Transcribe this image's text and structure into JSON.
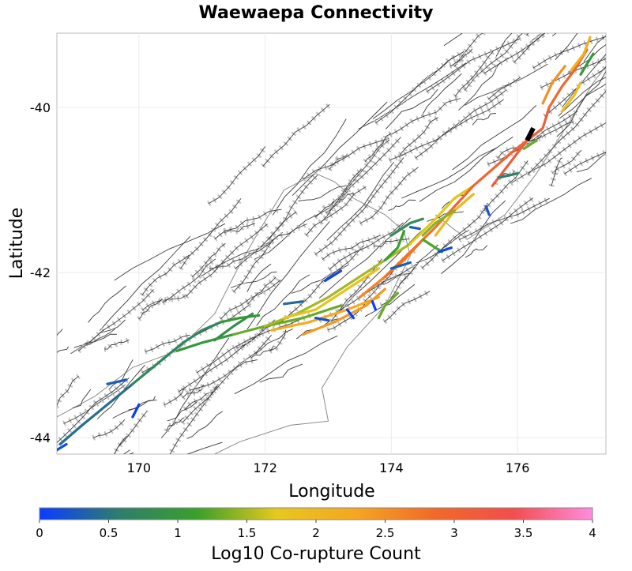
{
  "title": "Waewaepa Connectivity",
  "map": {
    "x_axis": {
      "label": "Longitude",
      "range": [
        168.7,
        177.4
      ],
      "ticks": [
        {
          "value": 170,
          "label": "170"
        },
        {
          "value": 172,
          "label": "172"
        },
        {
          "value": 174,
          "label": "174"
        },
        {
          "value": 176,
          "label": "176"
        }
      ]
    },
    "y_axis": {
      "label": "Latitude",
      "range": [
        -44.2,
        -39.1
      ],
      "ticks": [
        {
          "value": -40,
          "label": "-40"
        },
        {
          "value": -42,
          "label": "-42"
        },
        {
          "value": -44,
          "label": "-44"
        }
      ]
    },
    "colors": {
      "background_fault": "#3a3a3a",
      "fault_outline": "#bdbdbd",
      "coast": "#8a8a8a",
      "highlight": "#000000"
    },
    "highlighted_section": {
      "name": "Waewaepa",
      "points": [
        [
          176.25,
          -40.25
        ],
        [
          176.15,
          -40.4
        ]
      ]
    },
    "corupture_sections": [
      {
        "log10": 0.45,
        "points": [
          [
            168.75,
            -44.08
          ],
          [
            169.1,
            -43.85
          ],
          [
            169.5,
            -43.6
          ],
          [
            169.9,
            -43.35
          ]
        ]
      },
      {
        "log10": 0.7,
        "points": [
          [
            169.9,
            -43.35
          ],
          [
            170.3,
            -43.1
          ],
          [
            170.7,
            -42.85
          ],
          [
            171.0,
            -42.7
          ],
          [
            171.3,
            -42.6
          ]
        ]
      },
      {
        "log10": 1.05,
        "points": [
          [
            171.3,
            -42.6
          ],
          [
            171.6,
            -42.55
          ],
          [
            171.9,
            -42.52
          ]
        ]
      },
      {
        "log10": 0.15,
        "points": [
          [
            168.7,
            -44.15
          ],
          [
            168.85,
            -44.08
          ]
        ]
      },
      {
        "log10": 0.3,
        "points": [
          [
            169.5,
            -43.35
          ],
          [
            169.8,
            -43.3
          ]
        ]
      },
      {
        "log10": 0.0,
        "points": [
          [
            169.9,
            -43.75
          ],
          [
            170.0,
            -43.6
          ]
        ]
      },
      {
        "log10": 1.0,
        "points": [
          [
            170.6,
            -42.95
          ],
          [
            171.0,
            -42.85
          ],
          [
            171.5,
            -42.75
          ]
        ]
      },
      {
        "log10": 0.9,
        "points": [
          [
            171.2,
            -42.82
          ],
          [
            171.5,
            -42.65
          ],
          [
            171.8,
            -42.5
          ]
        ]
      },
      {
        "log10": 1.3,
        "points": [
          [
            171.5,
            -42.75
          ],
          [
            172.0,
            -42.65
          ],
          [
            172.6,
            -42.55
          ],
          [
            173.2,
            -42.4
          ]
        ]
      },
      {
        "log10": 1.5,
        "points": [
          [
            172.0,
            -42.65
          ],
          [
            172.5,
            -42.5
          ],
          [
            173.0,
            -42.3
          ],
          [
            173.5,
            -42.05
          ],
          [
            174.0,
            -41.8
          ],
          [
            174.3,
            -41.65
          ]
        ]
      },
      {
        "log10": 1.8,
        "points": [
          [
            172.3,
            -42.55
          ],
          [
            172.8,
            -42.45
          ],
          [
            173.3,
            -42.2
          ],
          [
            173.8,
            -41.95
          ]
        ]
      },
      {
        "log10": 2.2,
        "points": [
          [
            172.1,
            -42.7
          ],
          [
            172.7,
            -42.6
          ],
          [
            173.3,
            -42.45
          ],
          [
            173.8,
            -42.3
          ]
        ]
      },
      {
        "log10": 2.4,
        "points": [
          [
            172.6,
            -42.75
          ],
          [
            173.1,
            -42.6
          ],
          [
            173.6,
            -42.4
          ],
          [
            173.9,
            -42.2
          ]
        ]
      },
      {
        "log10": 2.6,
        "points": [
          [
            173.5,
            -42.3
          ],
          [
            173.9,
            -42.05
          ],
          [
            174.2,
            -41.85
          ],
          [
            174.5,
            -41.6
          ]
        ]
      },
      {
        "log10": 2.8,
        "points": [
          [
            173.9,
            -42.05
          ],
          [
            174.3,
            -41.75
          ],
          [
            174.7,
            -41.45
          ],
          [
            175.0,
            -41.2
          ]
        ]
      },
      {
        "log10": 1.7,
        "points": [
          [
            174.3,
            -41.65
          ],
          [
            174.7,
            -41.35
          ],
          [
            175.0,
            -41.1
          ],
          [
            175.3,
            -40.95
          ]
        ]
      },
      {
        "log10": 2.0,
        "points": [
          [
            174.7,
            -41.55
          ],
          [
            175.0,
            -41.25
          ],
          [
            175.3,
            -41.05
          ]
        ]
      },
      {
        "log10": 1.2,
        "points": [
          [
            174.5,
            -41.6
          ],
          [
            174.8,
            -41.75
          ]
        ]
      },
      {
        "log10": 0.8,
        "points": [
          [
            174.0,
            -41.55
          ],
          [
            174.3,
            -41.4
          ],
          [
            174.5,
            -41.35
          ]
        ]
      },
      {
        "log10": 0.1,
        "points": [
          [
            174.75,
            -41.75
          ],
          [
            174.95,
            -41.7
          ]
        ]
      },
      {
        "log10": 0.3,
        "points": [
          [
            174.0,
            -41.95
          ],
          [
            174.3,
            -41.88
          ]
        ]
      },
      {
        "log10": 1.1,
        "points": [
          [
            174.2,
            -41.5
          ],
          [
            174.1,
            -41.7
          ],
          [
            173.9,
            -41.85
          ]
        ]
      },
      {
        "log10": 3.0,
        "points": [
          [
            175.0,
            -41.2
          ],
          [
            175.3,
            -40.95
          ],
          [
            175.6,
            -40.75
          ],
          [
            175.9,
            -40.55
          ],
          [
            176.15,
            -40.4
          ]
        ]
      },
      {
        "log10": 3.1,
        "points": [
          [
            175.6,
            -40.95
          ],
          [
            175.9,
            -40.65
          ],
          [
            176.15,
            -40.4
          ],
          [
            176.4,
            -40.25
          ],
          [
            176.5,
            -40.0
          ]
        ]
      },
      {
        "log10": 2.9,
        "points": [
          [
            176.5,
            -40.0
          ],
          [
            176.7,
            -39.75
          ],
          [
            176.9,
            -39.55
          ],
          [
            177.1,
            -39.3
          ]
        ]
      },
      {
        "log10": 2.5,
        "points": [
          [
            176.4,
            -39.95
          ],
          [
            176.55,
            -39.7
          ],
          [
            176.75,
            -39.5
          ]
        ]
      },
      {
        "log10": 2.1,
        "points": [
          [
            176.85,
            -39.55
          ],
          [
            177.05,
            -39.35
          ],
          [
            177.15,
            -39.15
          ]
        ]
      },
      {
        "log10": 1.9,
        "points": [
          [
            176.7,
            -40.05
          ],
          [
            176.9,
            -39.85
          ],
          [
            177.0,
            -39.7
          ]
        ]
      },
      {
        "log10": 1.0,
        "points": [
          [
            177.0,
            -39.6
          ],
          [
            177.2,
            -39.35
          ]
        ]
      },
      {
        "log10": 1.3,
        "points": [
          [
            176.1,
            -40.5
          ],
          [
            176.3,
            -40.4
          ]
        ]
      },
      {
        "log10": 0.6,
        "points": [
          [
            175.7,
            -40.85
          ],
          [
            176.0,
            -40.8
          ]
        ]
      },
      {
        "log10": 0.2,
        "points": [
          [
            175.5,
            -41.2
          ],
          [
            175.55,
            -41.3
          ]
        ]
      },
      {
        "log10": 1.4,
        "points": [
          [
            175.0,
            -41.25
          ],
          [
            174.7,
            -41.4
          ],
          [
            174.5,
            -41.55
          ]
        ]
      },
      {
        "log10": 0.1,
        "points": [
          [
            172.95,
            -42.1
          ],
          [
            173.2,
            -41.98
          ]
        ]
      },
      {
        "log10": 0.4,
        "points": [
          [
            172.3,
            -42.38
          ],
          [
            172.6,
            -42.35
          ]
        ]
      },
      {
        "log10": 0.2,
        "points": [
          [
            172.8,
            -42.55
          ],
          [
            173.0,
            -42.58
          ]
        ]
      },
      {
        "log10": 0.0,
        "points": [
          [
            173.3,
            -42.45
          ],
          [
            173.4,
            -42.55
          ]
        ]
      },
      {
        "log10": 0.0,
        "points": [
          [
            173.7,
            -42.35
          ],
          [
            173.75,
            -42.45
          ]
        ]
      },
      {
        "log10": 1.3,
        "points": [
          [
            173.8,
            -42.55
          ],
          [
            173.9,
            -42.4
          ],
          [
            174.1,
            -42.25
          ]
        ]
      },
      {
        "log10": 0.3,
        "points": [
          [
            174.3,
            -41.45
          ],
          [
            174.45,
            -41.47
          ]
        ]
      }
    ]
  },
  "colorbar": {
    "label": "Log10 Co-rupture Count",
    "range": [
      0,
      4
    ],
    "ticks": [
      {
        "value": 0,
        "label": "0"
      },
      {
        "value": 0.5,
        "label": "0.5"
      },
      {
        "value": 1,
        "label": "1"
      },
      {
        "value": 1.5,
        "label": "1.5"
      },
      {
        "value": 2,
        "label": "2"
      },
      {
        "value": 2.5,
        "label": "2.5"
      },
      {
        "value": 3,
        "label": "3"
      },
      {
        "value": 3.5,
        "label": "3.5"
      },
      {
        "value": 4,
        "label": "4"
      }
    ],
    "stops": [
      "#0a3cff",
      "#2e7d6e",
      "#3aa02a",
      "#e6c81e",
      "#f5a623",
      "#f06a28",
      "#f14e4e",
      "#ff8ce0"
    ]
  }
}
